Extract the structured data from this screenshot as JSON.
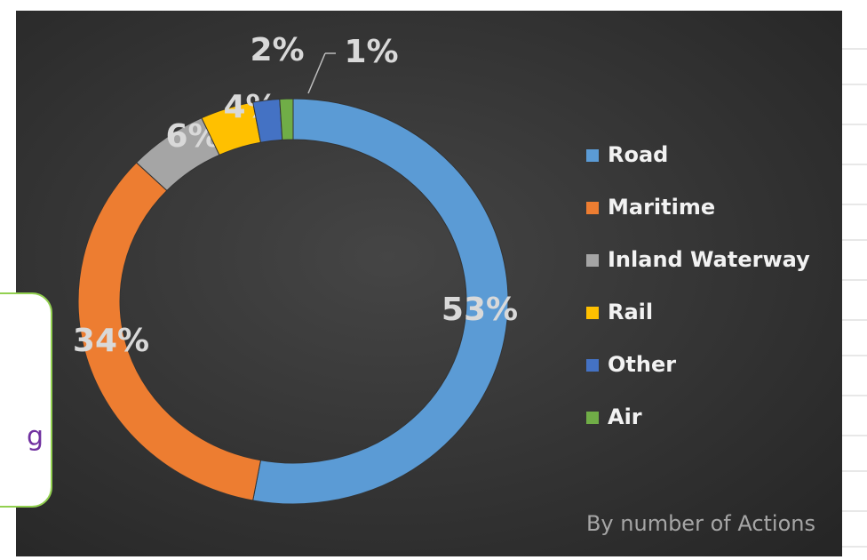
{
  "annotation": "g",
  "chart_data": {
    "type": "donut",
    "categories": [
      "Road",
      "Maritime",
      "Inland Waterway",
      "Rail",
      "Other",
      "Air"
    ],
    "values": [
      53,
      34,
      6,
      4,
      2,
      1
    ],
    "value_labels": [
      "53%",
      "34%",
      "6%",
      "4%",
      "2%",
      "1%"
    ],
    "colors": [
      "#5b9bd5",
      "#ed7d31",
      "#a5a5a5",
      "#ffc000",
      "#4472c4",
      "#70ad47"
    ],
    "legend": "right",
    "subtitle": "By number of Actions"
  }
}
